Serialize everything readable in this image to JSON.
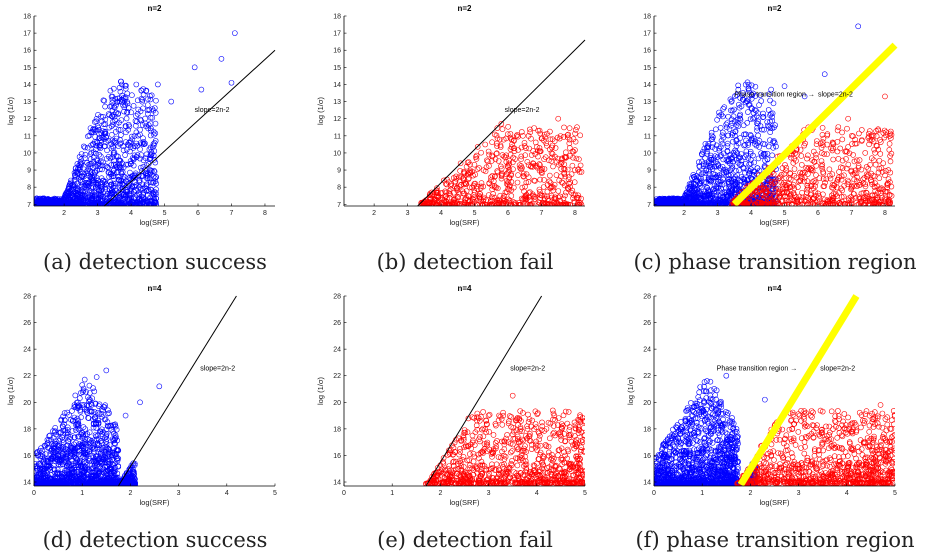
{
  "chart_data": [
    {
      "type": "scatter",
      "title": "n=2",
      "xlabel": "log(SRF)",
      "ylabel": "log (1/σ)",
      "xlim": [
        1.1,
        8.3
      ],
      "ylim": [
        6.9,
        18
      ],
      "xticks": [
        "2",
        "3",
        "4",
        "5",
        "6",
        "7",
        "8"
      ],
      "yticks": [
        "7",
        "8",
        "9",
        "10",
        "11",
        "12",
        "13",
        "14",
        "15",
        "16",
        "17",
        "18"
      ],
      "caption": "(a) detection success",
      "annotation": "slope=2n-2",
      "boundary_line": {
        "x": [
          3.2,
          8.3
        ],
        "y": [
          6.9,
          16.0
        ]
      },
      "series": [
        {
          "color": "#0000ff",
          "seed": 11,
          "count": 1500,
          "region": "success",
          "points": [
            [
              7.1,
              17.0
            ],
            [
              6.7,
              15.5
            ],
            [
              5.9,
              15.0
            ],
            [
              6.1,
              13.7
            ],
            [
              5.2,
              13.0
            ],
            [
              7.0,
              14.1
            ],
            [
              4.8,
              14.0
            ],
            [
              4.5,
              12.8
            ]
          ]
        }
      ]
    },
    {
      "type": "scatter",
      "title": "n=2",
      "xlabel": "log(SRF)",
      "ylabel": "log (1/σ)",
      "xlim": [
        1.1,
        8.3
      ],
      "ylim": [
        6.9,
        18
      ],
      "xticks": [
        "2",
        "3",
        "4",
        "5",
        "6",
        "7",
        "8"
      ],
      "yticks": [
        "7",
        "8",
        "9",
        "10",
        "11",
        "12",
        "13",
        "14",
        "15",
        "16",
        "17",
        "18"
      ],
      "caption": "(b) detection fail",
      "annotation": "slope=2n-2",
      "boundary_line": {
        "x": [
          3.3,
          8.3
        ],
        "y": [
          6.9,
          16.6
        ]
      },
      "series": [
        {
          "color": "#ff0000",
          "seed": 23,
          "count": 700,
          "region": "fail",
          "points": [
            [
              7.5,
              12.0
            ],
            [
              6.9,
              11.3
            ],
            [
              5.8,
              11.7
            ],
            [
              6.5,
              10.4
            ],
            [
              7.3,
              10.0
            ],
            [
              8.0,
              9.0
            ]
          ]
        }
      ]
    },
    {
      "type": "scatter",
      "title": "n=2",
      "xlabel": "log(SRF)",
      "ylabel": "log (1/σ)",
      "xlim": [
        1.1,
        8.3
      ],
      "ylim": [
        6.9,
        18
      ],
      "xticks": [
        "2",
        "3",
        "4",
        "5",
        "6",
        "7",
        "8"
      ],
      "yticks": [
        "7",
        "8",
        "9",
        "10",
        "11",
        "12",
        "13",
        "14",
        "15",
        "16",
        "17",
        "18"
      ],
      "caption": "(c) phase transition region",
      "annotation": "slope=2n-2",
      "annotation2": "Phase transition region →",
      "transition_band": {
        "x": [
          3.5,
          8.3
        ],
        "y": [
          7.0,
          16.3
        ]
      },
      "series": [
        {
          "color": "#0000ff",
          "seed": 37,
          "count": 1500,
          "region": "success",
          "points": [
            [
              7.2,
              17.4
            ],
            [
              6.2,
              14.6
            ],
            [
              5.0,
              13.9
            ],
            [
              5.6,
              13.3
            ],
            [
              4.6,
              13.7
            ]
          ]
        },
        {
          "color": "#ff0000",
          "seed": 41,
          "count": 700,
          "region": "fail",
          "points": [
            [
              8.0,
              13.3
            ],
            [
              6.9,
              12.0
            ],
            [
              7.8,
              10.2
            ],
            [
              8.1,
              9.0
            ]
          ]
        }
      ]
    },
    {
      "type": "scatter",
      "title": "n=4",
      "xlabel": "log(SRF)",
      "ylabel": "log (1/σ)",
      "xlim": [
        0,
        5
      ],
      "ylim": [
        13.7,
        28
      ],
      "xticks": [
        "0",
        "1",
        "2",
        "3",
        "4",
        "5"
      ],
      "yticks": [
        "14",
        "16",
        "18",
        "20",
        "22",
        "24",
        "26",
        "28"
      ],
      "caption": "(d) detection success",
      "annotation": "slope=2n-2",
      "boundary_line": {
        "x": [
          1.75,
          4.2
        ],
        "y": [
          13.7,
          28.0
        ]
      },
      "series": [
        {
          "color": "#0000ff",
          "seed": 53,
          "count": 1600,
          "region": "success",
          "points": [
            [
              1.5,
              22.4
            ],
            [
              1.3,
              21.9
            ],
            [
              1.0,
              21.3
            ],
            [
              2.6,
              21.2
            ],
            [
              2.2,
              20.0
            ],
            [
              1.9,
              19.0
            ]
          ]
        }
      ]
    },
    {
      "type": "scatter",
      "title": "n=4",
      "xlabel": "log(SRF)",
      "ylabel": "log (1/σ)",
      "xlim": [
        0,
        5
      ],
      "ylim": [
        13.7,
        28
      ],
      "xticks": [
        "0",
        "1",
        "2",
        "3",
        "4",
        "5"
      ],
      "yticks": [
        "14",
        "16",
        "18",
        "20",
        "22",
        "24",
        "26",
        "28"
      ],
      "caption": "(e) detection fail",
      "annotation": "slope=2n-2",
      "boundary_line": {
        "x": [
          1.7,
          4.1
        ],
        "y": [
          13.7,
          28.0
        ]
      },
      "series": [
        {
          "color": "#ff0000",
          "seed": 67,
          "count": 900,
          "region": "fail",
          "points": [
            [
              3.5,
              20.5
            ],
            [
              4.6,
              19.3
            ],
            [
              3.0,
              19.0
            ],
            [
              4.9,
              18.6
            ],
            [
              4.2,
              18.0
            ]
          ]
        }
      ]
    },
    {
      "type": "scatter",
      "title": "n=4",
      "xlabel": "log(SRF)",
      "ylabel": "log (1/σ)",
      "xlim": [
        0,
        5
      ],
      "ylim": [
        13.7,
        28
      ],
      "xticks": [
        "0",
        "1",
        "2",
        "3",
        "4",
        "5"
      ],
      "yticks": [
        "14",
        "16",
        "18",
        "20",
        "22",
        "24",
        "26",
        "28"
      ],
      "caption": "(f) phase transition region",
      "annotation": "slope=2n-2",
      "annotation2": "Phase transition region →",
      "transition_band": {
        "x": [
          1.8,
          4.2
        ],
        "y": [
          13.8,
          28.0
        ]
      },
      "series": [
        {
          "color": "#0000ff",
          "seed": 71,
          "count": 1600,
          "region": "success",
          "points": [
            [
              1.5,
              22.0
            ],
            [
              1.1,
              21.6
            ],
            [
              1.3,
              20.9
            ],
            [
              2.3,
              20.2
            ]
          ]
        },
        {
          "color": "#ff0000",
          "seed": 79,
          "count": 900,
          "region": "fail",
          "points": [
            [
              4.7,
              19.8
            ],
            [
              3.5,
              19.3
            ],
            [
              4.1,
              18.4
            ],
            [
              4.9,
              18.0
            ]
          ]
        }
      ]
    }
  ]
}
